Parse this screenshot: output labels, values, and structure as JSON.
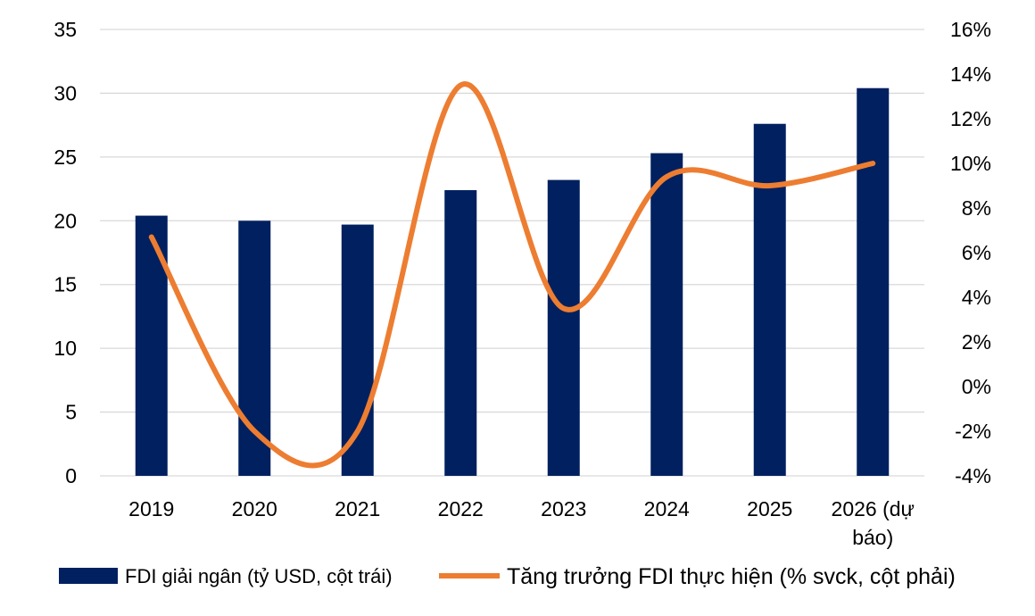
{
  "colors": {
    "bar": "#002060",
    "line": "#ED7D31",
    "grid": "#D9D9D9",
    "text": "#000000"
  },
  "chart_data": {
    "type": "bar",
    "categories": [
      [
        "2019"
      ],
      [
        "2020"
      ],
      [
        "2021"
      ],
      [
        "2022"
      ],
      [
        "2023"
      ],
      [
        "2024"
      ],
      [
        "2025"
      ],
      [
        "2026 (dự",
        "báo)"
      ]
    ],
    "series": [
      {
        "name": "FDI giải ngân (tỷ USD, cột trái)",
        "type": "bar",
        "axis": "left",
        "values": [
          20.4,
          20.0,
          19.7,
          22.4,
          23.2,
          25.3,
          27.6,
          30.4
        ]
      },
      {
        "name": "Tăng trưởng FDI thực hiện (% svck, cột phải)",
        "type": "line",
        "axis": "right",
        "smooth": true,
        "values": [
          6.7,
          -2.0,
          -2.0,
          13.5,
          3.5,
          9.4,
          9.0,
          10.0
        ]
      }
    ],
    "y_left": {
      "ylim": [
        0,
        35
      ],
      "ticks": [
        "0",
        "5",
        "10",
        "15",
        "20",
        "25",
        "30",
        "35"
      ]
    },
    "y_right": {
      "ylim": [
        -4,
        16
      ],
      "ticks": [
        "-4%",
        "-2%",
        "0%",
        "2%",
        "4%",
        "6%",
        "8%",
        "10%",
        "12%",
        "14%",
        "16%"
      ]
    },
    "grid": true,
    "legend": "bottom"
  }
}
